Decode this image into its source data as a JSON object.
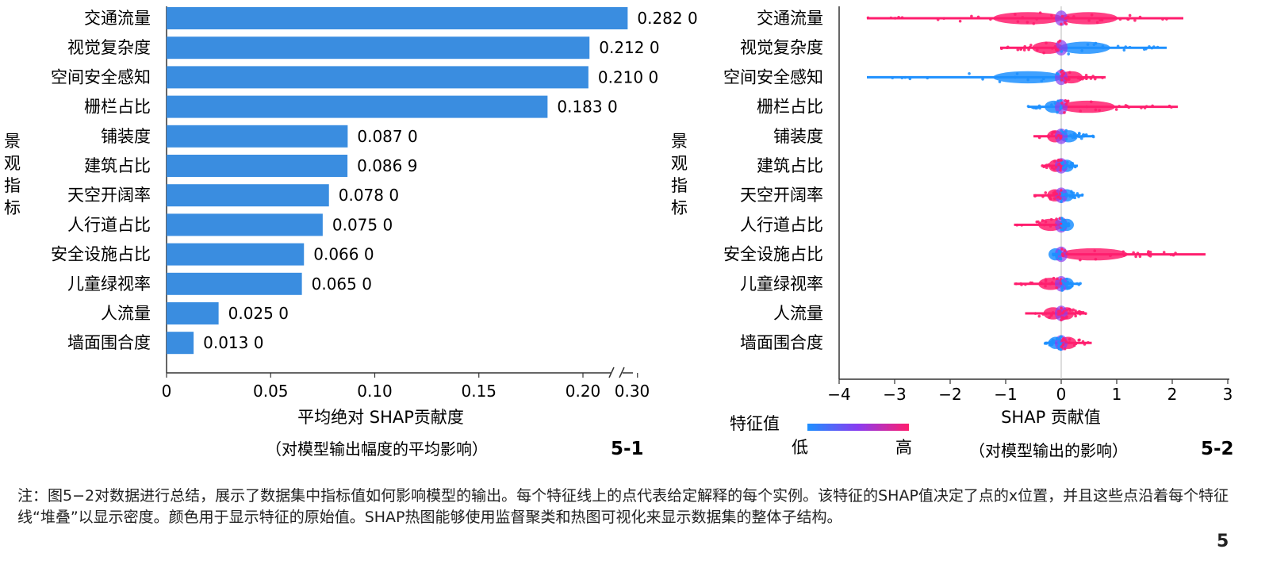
{
  "chart_data": [
    {
      "type": "bar",
      "orientation": "horizontal",
      "categories": [
        "交通流量",
        "视觉复杂度",
        "空间安全感知",
        "栅栏占比",
        "铺装度",
        "建筑占比",
        "天空开阔率",
        "人行道占比",
        "安全设施占比",
        "儿童绿视率",
        "人流量",
        "墙面围合度"
      ],
      "values": [
        0.282,
        0.212,
        0.21,
        0.183,
        0.087,
        0.0869,
        0.078,
        0.075,
        0.066,
        0.065,
        0.025,
        0.013
      ],
      "value_labels": [
        "0.282 0",
        "0.212 0",
        "0.210 0",
        "0.183 0",
        "0.087 0",
        "0.086 9",
        "0.078 0",
        "0.075 0",
        "0.066 0",
        "0.065 0",
        "0.025 0",
        "0.013 0"
      ],
      "xticks": [
        "0",
        "0.05",
        "0.10",
        "0.15",
        "0.20",
        "0.30"
      ],
      "axis_break": "between 0.20 and 0.30",
      "xlabel": "平均绝对 SHAP贡献度",
      "xlabel_sub": "（对模型输出幅度的平均影响）",
      "ylabel": "景观指标",
      "panel_label": "5-1",
      "bar_color": "#3a8de0",
      "grid": false
    },
    {
      "type": "scatter",
      "subtype": "beeswarm",
      "categories": [
        "交通流量",
        "视觉复杂度",
        "空间安全感知",
        "栅栏占比",
        "铺装度",
        "建筑占比",
        "天空开阔率",
        "人行道占比",
        "安全设施占比",
        "儿童绿视率",
        "人流量",
        "墙面围合度"
      ],
      "series": [
        {
          "low_side_min": -3.5,
          "low_side_color": "high",
          "high_side_max": 2.2,
          "high_side_color": "high"
        },
        {
          "low_side_min": -1.1,
          "low_side_color": "high",
          "high_side_max": 1.9,
          "high_side_color": "low"
        },
        {
          "low_side_min": -3.5,
          "low_side_color": "low",
          "high_side_max": 0.8,
          "high_side_color": "high"
        },
        {
          "low_side_min": -0.6,
          "low_side_color": "low",
          "high_side_max": 2.1,
          "high_side_color": "high"
        },
        {
          "low_side_min": -0.5,
          "low_side_color": "high",
          "high_side_max": 0.6,
          "high_side_color": "low"
        },
        {
          "low_side_min": -0.35,
          "low_side_color": "high",
          "high_side_max": 0.3,
          "high_side_color": "low"
        },
        {
          "low_side_min": -0.5,
          "low_side_color": "high",
          "high_side_max": 0.4,
          "high_side_color": "low"
        },
        {
          "low_side_min": -0.85,
          "low_side_color": "high",
          "high_side_max": 0.15,
          "high_side_color": "low"
        },
        {
          "low_side_min": -0.15,
          "low_side_color": "low",
          "high_side_max": 2.6,
          "high_side_color": "high"
        },
        {
          "low_side_min": -0.85,
          "low_side_color": "high",
          "high_side_max": 0.35,
          "high_side_color": "low"
        },
        {
          "low_side_min": -0.65,
          "low_side_color": "high",
          "high_side_max": 0.45,
          "high_side_color": "high"
        },
        {
          "low_side_min": -0.3,
          "low_side_color": "low",
          "high_side_max": 0.55,
          "high_side_color": "high"
        }
      ],
      "xlim": [
        -4,
        3
      ],
      "xticks": [
        "−4",
        "−3",
        "−2",
        "−1",
        "0",
        "1",
        "2",
        "3"
      ],
      "xlabel": "SHAP 贡献值",
      "xlabel_sub": "（对模型输出的影响）",
      "ylabel": "景观指标",
      "colorbar": {
        "title": "特征值",
        "low": "低",
        "high": "高",
        "low_color": "#1e90ff",
        "high_color": "#ff1e6e"
      },
      "panel_label": "5-2"
    }
  ],
  "note": {
    "text": "注：图5−2对数据进行总结，展示了数据集中指标值如何影响模型的输出。每个特征线上的点代表给定解释的每个实例。该特征的SHAP值决定了点的x位置，并且这些点沿着每个特征线“堆叠”以显示密度。颜色用于显示特征的原始值。SHAP热图能够使用监督聚类和热图可视化来显示数据集的整体子结构。"
  },
  "page_number": "5"
}
